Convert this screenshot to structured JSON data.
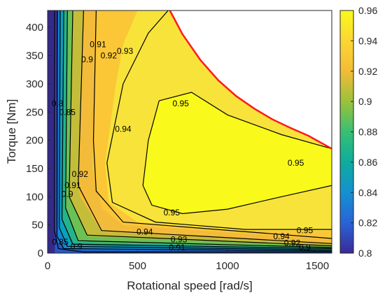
{
  "chart_data": {
    "type": "contour",
    "xlabel": "Rotational speed [rad/s]",
    "ylabel": "Torque [Nm]",
    "xlim": [
      0,
      1580
    ],
    "ylim": [
      0,
      430
    ],
    "x_ticks": [
      "0",
      "500",
      "1000",
      "1500"
    ],
    "y_ticks": [
      "0",
      "50",
      "100",
      "150",
      "200",
      "250",
      "300",
      "350",
      "400"
    ],
    "x_tick_values": [
      0,
      500,
      1000,
      1500
    ],
    "y_tick_values": [
      0,
      50,
      100,
      150,
      200,
      250,
      300,
      350,
      400
    ],
    "colorbar": {
      "min": 0.8,
      "max": 0.96,
      "ticks": [
        "0.8",
        "0.82",
        "0.84",
        "0.86",
        "0.88",
        "0.9",
        "0.92",
        "0.94",
        "0.96"
      ],
      "tick_values": [
        0.8,
        0.82,
        0.84,
        0.86,
        0.88,
        0.9,
        0.92,
        0.94,
        0.96
      ],
      "colors": [
        "#3a2a97",
        "#2a63d7",
        "#1591d0",
        "#0dac9e",
        "#38bf73",
        "#9bc23b",
        "#f3bc37",
        "#fbd634",
        "#f9f91b"
      ]
    },
    "contour_levels": [
      "0.8",
      "0.85",
      "0.9",
      "0.91",
      "0.92",
      "0.93",
      "0.94",
      "0.95"
    ],
    "contour_labels": [
      {
        "text": "0.95",
        "x": 740,
        "y": 265
      },
      {
        "text": "0.94",
        "x": 420,
        "y": 220
      },
      {
        "text": "0.95",
        "x": 1380,
        "y": 160
      },
      {
        "text": "0.95",
        "x": 690,
        "y": 72
      },
      {
        "text": "0.94",
        "x": 540,
        "y": 38
      },
      {
        "text": "0.95",
        "x": 1430,
        "y": 40
      },
      {
        "text": "0.94",
        "x": 1300,
        "y": 30
      },
      {
        "text": "0.93",
        "x": 730,
        "y": 24
      },
      {
        "text": "0.92",
        "x": 1360,
        "y": 18
      },
      {
        "text": "0.93",
        "x": 430,
        "y": 358
      },
      {
        "text": "0.92",
        "x": 340,
        "y": 350
      },
      {
        "text": "0.91",
        "x": 280,
        "y": 370
      },
      {
        "text": "0.9",
        "x": 220,
        "y": 343
      },
      {
        "text": "0.92",
        "x": 180,
        "y": 140
      },
      {
        "text": "0.91",
        "x": 140,
        "y": 120
      },
      {
        "text": "0.9",
        "x": 110,
        "y": 105
      },
      {
        "text": "0.85",
        "x": 110,
        "y": 250
      },
      {
        "text": "0.8",
        "x": 55,
        "y": 265
      },
      {
        "text": "0.85",
        "x": 70,
        "y": 20
      },
      {
        "text": "0.9",
        "x": 160,
        "y": 12
      },
      {
        "text": "0.91",
        "x": 720,
        "y": 10
      },
      {
        "text": "0.9",
        "x": 1430,
        "y": 10
      }
    ],
    "max_torque_curve": {
      "name": "",
      "color": "#ff1a1a",
      "x": [
        680,
        750,
        850,
        950,
        1050,
        1150,
        1250,
        1350,
        1450,
        1580
      ],
      "y": [
        430,
        388,
        342,
        306,
        278,
        256,
        237,
        222,
        208,
        185
      ]
    },
    "grid": false,
    "legend": "none"
  }
}
